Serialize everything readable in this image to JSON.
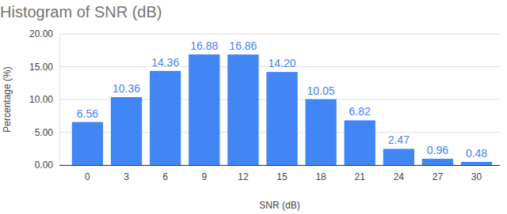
{
  "chart_data": {
    "type": "bar",
    "title": "Histogram of SNR (dB)",
    "x_label": "SNR (dB)",
    "y_label": "Percentage (%)",
    "categories": [
      "0",
      "3",
      "6",
      "9",
      "12",
      "15",
      "18",
      "21",
      "24",
      "27",
      "30"
    ],
    "values": [
      6.56,
      10.36,
      14.36,
      16.88,
      16.86,
      14.2,
      10.05,
      6.82,
      2.47,
      0.96,
      0.48
    ],
    "value_labels": [
      "6.56",
      "10.36",
      "14.36",
      "16.88",
      "16.86",
      "14.20",
      "10.05",
      "6.82",
      "2.47",
      "0.96",
      "0.48"
    ],
    "color": "#4285f4",
    "ylim": [
      0,
      20
    ],
    "yticks": [
      {
        "value": 0,
        "label": "0.00"
      },
      {
        "value": 5,
        "label": "5.00"
      },
      {
        "value": 10,
        "label": "10.00"
      },
      {
        "value": 15,
        "label": "15.00"
      },
      {
        "value": 20,
        "label": "20.00"
      }
    ],
    "grid": true,
    "data_labels": true
  }
}
